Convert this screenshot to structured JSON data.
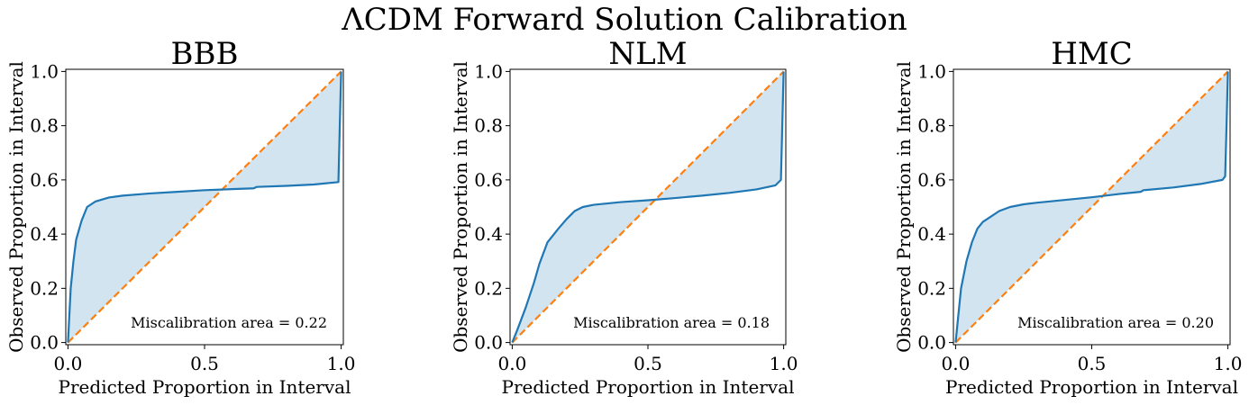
{
  "figure": {
    "suptitle": "ΛCDM Forward Solution Calibration"
  },
  "colors": {
    "calibration_line": "#1f77b4",
    "ideal_line": "#ff7f0e",
    "fill": "#1f77b4",
    "fill_opacity": 0.2
  },
  "chart_data": [
    {
      "type": "line",
      "title": "BBB",
      "xlabel": "Predicted Proportion in Interval",
      "ylabel": "Observed Proportion in Interval",
      "xlim": [
        0,
        1
      ],
      "ylim": [
        0,
        1
      ],
      "xticks": [
        0.0,
        0.5,
        1.0
      ],
      "xtick_labels": [
        "0.0",
        "0.5",
        "1.0"
      ],
      "yticks": [
        0.0,
        0.2,
        0.4,
        0.6,
        0.8,
        1.0
      ],
      "ytick_labels": [
        "0.0",
        "0.2",
        "0.4",
        "0.6",
        "0.8",
        "1.0"
      ],
      "annotation": "Miscalibration area = 0.22",
      "grid": false,
      "series": [
        {
          "style": "solid",
          "x": [
            0,
            0.01,
            0.02,
            0.03,
            0.05,
            0.07,
            0.1,
            0.15,
            0.2,
            0.3,
            0.4,
            0.5,
            0.6,
            0.68,
            0.69,
            0.8,
            0.9,
            0.99,
            0.995,
            1.0
          ],
          "y": [
            0,
            0.2,
            0.3,
            0.38,
            0.45,
            0.5,
            0.52,
            0.535,
            0.542,
            0.55,
            0.556,
            0.562,
            0.566,
            0.569,
            0.574,
            0.578,
            0.583,
            0.592,
            0.8,
            1.0
          ]
        },
        {
          "style": "dashed",
          "x": [
            0,
            1
          ],
          "y": [
            0,
            1
          ]
        }
      ]
    },
    {
      "type": "line",
      "title": "NLM",
      "xlabel": "Predicted Proportion in Interval",
      "ylabel": "Observed Proportion in Interval",
      "xlim": [
        0,
        1
      ],
      "ylim": [
        0,
        1
      ],
      "xticks": [
        0.0,
        0.5,
        1.0
      ],
      "xtick_labels": [
        "0.0",
        "0.5",
        "1.0"
      ],
      "yticks": [
        0.0,
        0.2,
        0.4,
        0.6,
        0.8,
        1.0
      ],
      "ytick_labels": [
        "0.0",
        "0.2",
        "0.4",
        "0.6",
        "0.8",
        "1.0"
      ],
      "annotation": "Miscalibration area = 0.18",
      "grid": false,
      "series": [
        {
          "style": "solid",
          "x": [
            0,
            0.02,
            0.05,
            0.08,
            0.1,
            0.13,
            0.17,
            0.2,
            0.23,
            0.26,
            0.3,
            0.4,
            0.5,
            0.6,
            0.7,
            0.8,
            0.9,
            0.97,
            0.99,
            0.995,
            1.0
          ],
          "y": [
            0,
            0.05,
            0.13,
            0.22,
            0.29,
            0.37,
            0.42,
            0.455,
            0.485,
            0.5,
            0.508,
            0.518,
            0.525,
            0.533,
            0.542,
            0.552,
            0.565,
            0.58,
            0.6,
            0.8,
            1.0
          ]
        },
        {
          "style": "dashed",
          "x": [
            0,
            1
          ],
          "y": [
            0,
            1
          ]
        }
      ]
    },
    {
      "type": "line",
      "title": "HMC",
      "xlabel": "Predicted Proportion in Interval",
      "ylabel": "Observed Proportion in Interval",
      "xlim": [
        0,
        1
      ],
      "ylim": [
        0,
        1
      ],
      "xticks": [
        0.0,
        0.5,
        1.0
      ],
      "xtick_labels": [
        "0.0",
        "0.5",
        "1.0"
      ],
      "yticks": [
        0.0,
        0.2,
        0.4,
        0.6,
        0.8,
        1.0
      ],
      "ytick_labels": [
        "0.0",
        "0.2",
        "0.4",
        "0.6",
        "0.8",
        "1.0"
      ],
      "annotation": "Miscalibration area = 0.20",
      "grid": false,
      "series": [
        {
          "style": "solid",
          "x": [
            0,
            0.01,
            0.02,
            0.04,
            0.06,
            0.08,
            0.1,
            0.13,
            0.16,
            0.2,
            0.25,
            0.3,
            0.4,
            0.5,
            0.6,
            0.68,
            0.69,
            0.8,
            0.9,
            0.98,
            0.99,
            0.995,
            1.0
          ],
          "y": [
            0,
            0.1,
            0.2,
            0.3,
            0.37,
            0.42,
            0.445,
            0.465,
            0.485,
            0.5,
            0.51,
            0.516,
            0.526,
            0.536,
            0.548,
            0.556,
            0.562,
            0.572,
            0.585,
            0.6,
            0.613,
            0.8,
            1.0
          ]
        },
        {
          "style": "dashed",
          "x": [
            0,
            1
          ],
          "y": [
            0,
            1
          ]
        }
      ]
    }
  ]
}
